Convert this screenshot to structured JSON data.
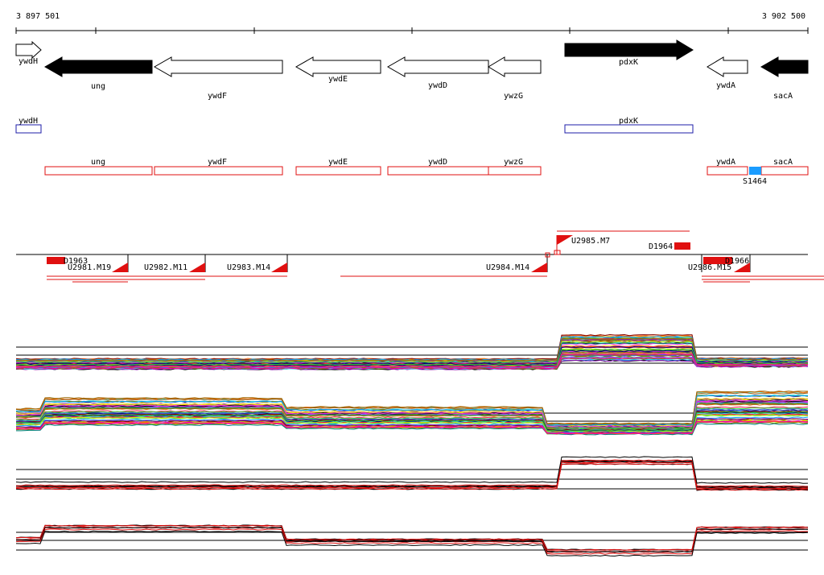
{
  "axis": {
    "start_label": "3 897 501",
    "end_label": "3 902 500"
  },
  "genes": [
    {
      "name": "ywdH",
      "strand": "+",
      "fill": "white"
    },
    {
      "name": "ung",
      "strand": "-",
      "fill": "black"
    },
    {
      "name": "ywdF",
      "strand": "-",
      "fill": "white"
    },
    {
      "name": "ywdE",
      "strand": "-",
      "fill": "white"
    },
    {
      "name": "ywdD",
      "strand": "-",
      "fill": "white"
    },
    {
      "name": "ywzG",
      "strand": "-",
      "fill": "white"
    },
    {
      "name": "pdxK",
      "strand": "+",
      "fill": "black"
    },
    {
      "name": "ywdA",
      "strand": "-",
      "fill": "white"
    },
    {
      "name": "sacA",
      "strand": "-",
      "fill": "black"
    }
  ],
  "plus_track": [
    {
      "name": "ywdH"
    },
    {
      "name": "pdxK"
    }
  ],
  "minus_track": [
    {
      "name": "ung"
    },
    {
      "name": "ywdF"
    },
    {
      "name": "ywdE"
    },
    {
      "name": "ywdD"
    },
    {
      "name": "ywzG"
    },
    {
      "name": "ywdA"
    },
    {
      "name": "sacA"
    }
  ],
  "marker": {
    "label": "S1464",
    "color": "#1a9cff"
  },
  "segments": {
    "upper": [
      {
        "label": "U2985.M7"
      },
      {
        "label": "D1964"
      }
    ],
    "lower": [
      {
        "label": "D1963"
      },
      {
        "label": "U2981.M19"
      },
      {
        "label": "U2982.M11"
      },
      {
        "label": "U2983.M14"
      },
      {
        "label": "U2984.M14"
      },
      {
        "label": "U2986.M15"
      },
      {
        "label": "D1966"
      }
    ]
  },
  "colors": {
    "plus_track": "#1e1ea8",
    "minus_track": "#e01010",
    "segment": "#e01010"
  },
  "panels": [
    {
      "kind": "multicolor",
      "description_level": "plus-strand expression"
    },
    {
      "kind": "multicolor",
      "description_level": "minus-strand expression"
    },
    {
      "kind": "red-black"
    },
    {
      "kind": "red-black"
    }
  ]
}
